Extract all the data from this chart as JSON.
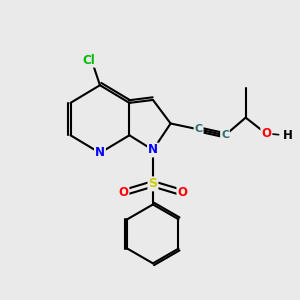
{
  "background_color": "#eaeaea",
  "figsize": [
    3.0,
    3.0
  ],
  "dpi": 100,
  "atom_colors": {
    "C": "#2f7070",
    "N": "#0000ff",
    "O": "#ff0000",
    "S": "#cccc00",
    "Cl": "#00bb00",
    "H": "#000000",
    "bond": "#000000"
  },
  "bond_width": 1.5,
  "font_size": 8.5
}
